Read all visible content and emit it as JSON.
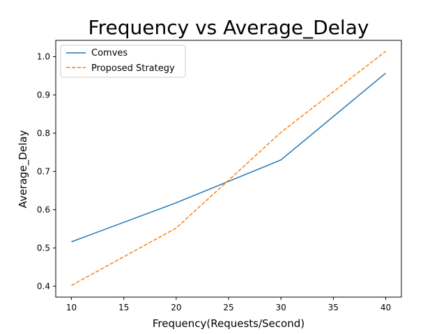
{
  "chart_data": {
    "type": "line",
    "title": "Frequency vs Average_Delay",
    "xlabel": "Frequency(Requests/Second)",
    "ylabel": "Average_Delay",
    "x": [
      10,
      20,
      30,
      40
    ],
    "series": [
      {
        "name": "Comves",
        "values": [
          0.516,
          0.618,
          0.73,
          0.957
        ],
        "color": "#1f77b4",
        "style": "solid"
      },
      {
        "name": "Proposed Strategy",
        "values": [
          0.402,
          0.552,
          0.802,
          1.014
        ],
        "color": "#ff7f0e",
        "style": "dashed"
      }
    ],
    "xlim": [
      8.5,
      41.5
    ],
    "ylim": [
      0.3714,
      1.0426
    ],
    "xticks": [
      10,
      15,
      20,
      25,
      30,
      35,
      40
    ],
    "yticks": [
      0.4,
      0.5,
      0.6,
      0.7,
      0.8,
      0.9,
      1.0
    ],
    "legend_position": "top-left",
    "grid": false
  }
}
